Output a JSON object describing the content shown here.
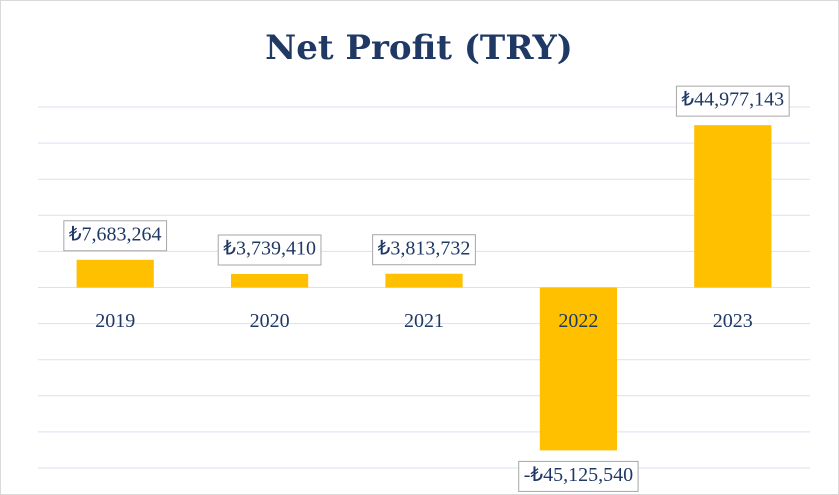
{
  "chart_data": {
    "type": "bar",
    "title": "Net Profit (TRY)",
    "categories": [
      "2019",
      "2020",
      "2021",
      "2022",
      "2023"
    ],
    "values": [
      7683264,
      3739410,
      3813732,
      -45125540,
      44977143
    ],
    "value_labels": [
      "₺7,683,264",
      "₺3,739,410",
      "₺3,813,732",
      "-₺45,125,540",
      "₺44,977,143"
    ],
    "color": "#ffc000",
    "ylim": [
      -50000000,
      50000000
    ],
    "yticks": [
      -50000000,
      -40000000,
      -30000000,
      -20000000,
      -10000000,
      0,
      10000000,
      20000000,
      30000000,
      40000000,
      50000000
    ],
    "grid": true
  }
}
